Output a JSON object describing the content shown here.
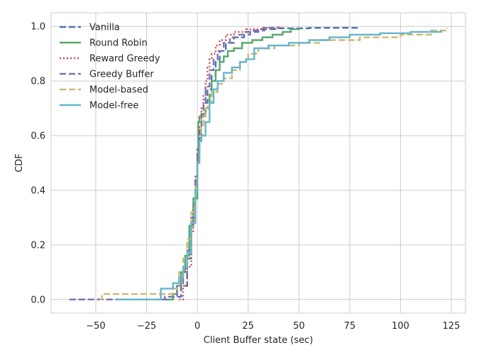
{
  "chart_data": {
    "type": "line",
    "title": "",
    "xlabel": "Client Buffer state (sec)",
    "ylabel": "CDF",
    "xlim": [
      -72,
      132
    ],
    "ylim": [
      -0.05,
      1.05
    ],
    "xticks": [
      -50,
      -25,
      0,
      25,
      50,
      75,
      100,
      125
    ],
    "xtick_labels": [
      "−50",
      "−25",
      "0",
      "25",
      "50",
      "75",
      "100",
      "125"
    ],
    "yticks": [
      0.0,
      0.2,
      0.4,
      0.6,
      0.8,
      1.0
    ],
    "ytick_labels": [
      "0.0",
      "0.2",
      "0.4",
      "0.6",
      "0.8",
      "1.0"
    ],
    "grid": true,
    "legend_position": "top-left",
    "series": [
      {
        "name": "Vanilla",
        "color": "#4C72B0",
        "dash": "dashed",
        "points": [
          [
            -63,
            0.0
          ],
          [
            -20,
            0.0
          ],
          [
            -12,
            0.01
          ],
          [
            -8,
            0.05
          ],
          [
            -5,
            0.15
          ],
          [
            -3,
            0.3
          ],
          [
            -1,
            0.45
          ],
          [
            0,
            0.55
          ],
          [
            1,
            0.62
          ],
          [
            2,
            0.67
          ],
          [
            3,
            0.72
          ],
          [
            5,
            0.77
          ],
          [
            7,
            0.82
          ],
          [
            9,
            0.87
          ],
          [
            11,
            0.91
          ],
          [
            14,
            0.94
          ],
          [
            18,
            0.96
          ],
          [
            23,
            0.98
          ],
          [
            30,
            0.99
          ],
          [
            40,
            0.993
          ],
          [
            55,
            0.995
          ],
          [
            79,
            0.996
          ]
        ]
      },
      {
        "name": "Round Robin",
        "color": "#55A868",
        "dash": "solid",
        "points": [
          [
            -15,
            0.0
          ],
          [
            -12,
            0.02
          ],
          [
            -10,
            0.05
          ],
          [
            -8,
            0.1
          ],
          [
            -6,
            0.16
          ],
          [
            -4,
            0.27
          ],
          [
            -2,
            0.37
          ],
          [
            0,
            0.5
          ],
          [
            0.5,
            0.65
          ],
          [
            1,
            0.67
          ],
          [
            2,
            0.68
          ],
          [
            4,
            0.7
          ],
          [
            6,
            0.75
          ],
          [
            7,
            0.8
          ],
          [
            9,
            0.84
          ],
          [
            11,
            0.87
          ],
          [
            13,
            0.89
          ],
          [
            15,
            0.91
          ],
          [
            18,
            0.92
          ],
          [
            22,
            0.94
          ],
          [
            27,
            0.95
          ],
          [
            32,
            0.96
          ],
          [
            37,
            0.97
          ],
          [
            42,
            0.98
          ],
          [
            46,
            0.99
          ],
          [
            50,
            0.993
          ]
        ]
      },
      {
        "name": "Reward Greedy",
        "color": "#C44E52",
        "dash": "dotted",
        "points": [
          [
            -9,
            0.0
          ],
          [
            -7,
            0.05
          ],
          [
            -5,
            0.12
          ],
          [
            -3,
            0.25
          ],
          [
            -2,
            0.35
          ],
          [
            -1,
            0.45
          ],
          [
            0,
            0.55
          ],
          [
            1,
            0.63
          ],
          [
            2,
            0.7
          ],
          [
            3,
            0.75
          ],
          [
            4,
            0.8
          ],
          [
            5,
            0.85
          ],
          [
            6,
            0.88
          ],
          [
            7,
            0.9
          ],
          [
            9,
            0.93
          ],
          [
            11,
            0.95
          ],
          [
            14,
            0.97
          ],
          [
            18,
            0.98
          ],
          [
            24,
            0.99
          ],
          [
            32,
            0.995
          ],
          [
            42,
            1.0
          ]
        ]
      },
      {
        "name": "Greedy Buffer",
        "color": "#8172B2",
        "dash": "dashed",
        "points": [
          [
            -63,
            0.0
          ],
          [
            -30,
            0.0
          ],
          [
            -16,
            0.01
          ],
          [
            -10,
            0.05
          ],
          [
            -7,
            0.1
          ],
          [
            -5,
            0.18
          ],
          [
            -3,
            0.3
          ],
          [
            -1,
            0.42
          ],
          [
            0,
            0.52
          ],
          [
            1,
            0.6
          ],
          [
            2,
            0.67
          ],
          [
            3,
            0.72
          ],
          [
            4,
            0.78
          ],
          [
            6,
            0.84
          ],
          [
            8,
            0.88
          ],
          [
            10,
            0.91
          ],
          [
            13,
            0.94
          ],
          [
            16,
            0.96
          ],
          [
            20,
            0.97
          ],
          [
            26,
            0.985
          ],
          [
            33,
            0.995
          ],
          [
            40,
            1.0
          ]
        ]
      },
      {
        "name": "Model-based",
        "color": "#CCB974",
        "dash": "dashed",
        "points": [
          [
            -48,
            0.0
          ],
          [
            -47,
            0.02
          ],
          [
            -30,
            0.02
          ],
          [
            -15,
            0.02
          ],
          [
            -12,
            0.04
          ],
          [
            -9,
            0.1
          ],
          [
            -7,
            0.15
          ],
          [
            -5,
            0.22
          ],
          [
            -3,
            0.32
          ],
          [
            -1,
            0.42
          ],
          [
            0,
            0.5
          ],
          [
            1,
            0.58
          ],
          [
            2,
            0.63
          ],
          [
            3,
            0.67
          ],
          [
            4,
            0.7
          ],
          [
            5,
            0.72
          ],
          [
            7,
            0.76
          ],
          [
            10,
            0.79
          ],
          [
            13,
            0.81
          ],
          [
            17,
            0.84
          ],
          [
            21,
            0.87
          ],
          [
            25,
            0.9
          ],
          [
            30,
            0.92
          ],
          [
            38,
            0.93
          ],
          [
            50,
            0.94
          ],
          [
            60,
            0.95
          ],
          [
            80,
            0.96
          ],
          [
            100,
            0.97
          ],
          [
            115,
            0.985
          ],
          [
            123,
            0.995
          ]
        ]
      },
      {
        "name": "Model-free",
        "color": "#64B5CD",
        "dash": "solid",
        "points": [
          [
            -40,
            0.0
          ],
          [
            -25,
            0.0
          ],
          [
            -18,
            0.04
          ],
          [
            -12,
            0.06
          ],
          [
            -9,
            0.08
          ],
          [
            -7,
            0.12
          ],
          [
            -5,
            0.17
          ],
          [
            -3,
            0.28
          ],
          [
            -1,
            0.4
          ],
          [
            0,
            0.5
          ],
          [
            1,
            0.58
          ],
          [
            2,
            0.6
          ],
          [
            4,
            0.65
          ],
          [
            6,
            0.72
          ],
          [
            8,
            0.77
          ],
          [
            10,
            0.8
          ],
          [
            13,
            0.83
          ],
          [
            17,
            0.85
          ],
          [
            21,
            0.87
          ],
          [
            24,
            0.88
          ],
          [
            28,
            0.92
          ],
          [
            35,
            0.93
          ],
          [
            45,
            0.94
          ],
          [
            55,
            0.95
          ],
          [
            65,
            0.96
          ],
          [
            75,
            0.97
          ],
          [
            90,
            0.975
          ],
          [
            105,
            0.98
          ],
          [
            120,
            0.985
          ]
        ]
      }
    ]
  }
}
